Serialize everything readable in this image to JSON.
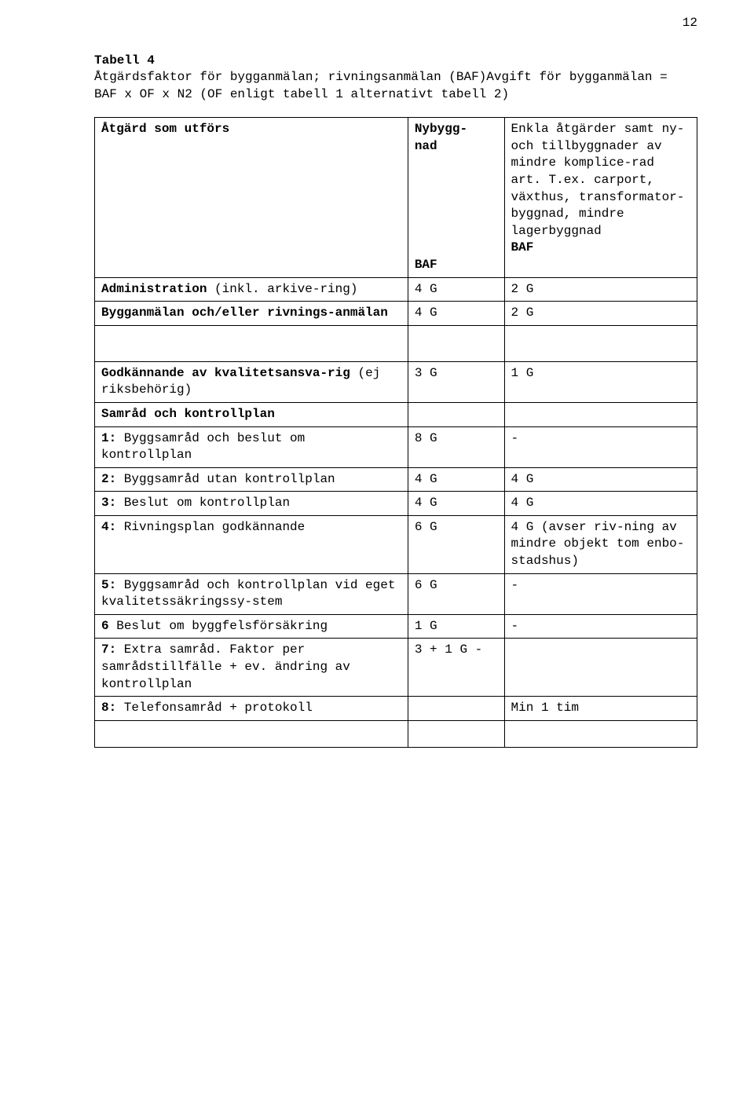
{
  "page": {
    "number": "12",
    "heading": "Tabell 4",
    "intro": "Åtgärdsfaktor för bygganmälan; rivningsanmälan (BAF)Avgift för bygganmälan = BAF x OF x N2 (OF enligt tabell 1 alternativt tabell 2)"
  },
  "colors": {
    "background": "#ffffff",
    "text": "#000000",
    "border": "#000000"
  },
  "font": {
    "family": "Courier New",
    "size_pt": 12,
    "heading_weight": "bold"
  },
  "table": {
    "col_widths_pct": [
      52,
      16,
      32
    ],
    "header": {
      "c1_bold": "Åtgärd som utförs",
      "c2_line1_bold": "Nybygg-\nnad",
      "c2_line2_bold": "BAF",
      "c3_plain": "Enkla åtgärder samt ny- och tillbyggnader av mindre komplice-rad art. T.ex. carport, växthus, transformator-byggnad, mindre lagerbyggnad",
      "c3_bold_last": "BAF"
    },
    "rows_block1": [
      {
        "c1_bold": "Administration",
        "c1_plain": " (inkl. arkive-ring)",
        "c2": "4 G",
        "c3": "2 G"
      },
      {
        "c1_bold": "Bygganmälan och/eller rivnings-anmälan",
        "c1_plain": "",
        "c2": "4 G",
        "c3": "2 G"
      }
    ],
    "rows_block2_header": [
      {
        "c1_bold": "Godkännande av kvalitetsansva-rig",
        "c1_plain": " (ej riksbehörig)",
        "c2": "3 G",
        "c3": "1 G"
      },
      {
        "c1_bold": "Samråd och kontrollplan",
        "c1_plain": "",
        "c2": "",
        "c3": ""
      }
    ],
    "rows_block2": [
      {
        "c1_bold_prefix": "1:",
        "c1_rest": " Byggsamråd och beslut om kontrollplan",
        "c2": "8 G",
        "c3": "-"
      },
      {
        "c1_bold_prefix": "2:",
        "c1_rest": " Byggsamråd utan kontrollplan",
        "c2": "4 G",
        "c3": "4 G"
      },
      {
        "c1_bold_prefix": "3:",
        "c1_rest": " Beslut om kontrollplan",
        "c2": "4 G",
        "c3": "4 G"
      },
      {
        "c1_bold_prefix": "4:",
        "c1_rest": " Rivningsplan godkännande",
        "c2": "6 G",
        "c3": "4 G (avser riv-ning av mindre objekt tom enbo-stadshus)"
      },
      {
        "c1_bold_prefix": "5:",
        "c1_rest": " Byggsamråd och kontrollplan vid eget kvalitetssäkringssy-stem",
        "c2": "6 G",
        "c3": "-"
      },
      {
        "c1_bold_prefix": "6",
        "c1_rest": "  Beslut om byggfelsförsäkring",
        "c2": "1 G",
        "c3": "-"
      },
      {
        "c1_bold_prefix": "7:",
        "c1_rest": " Extra samråd. Faktor per samrådstillfälle + ev. ändring av kontrollplan",
        "c2": "3 + 1 G -",
        "c3": ""
      },
      {
        "c1_bold_prefix": "8:",
        "c1_rest": " Telefonsamråd + protokoll",
        "c2": "",
        "c3": "Min 1 tim"
      }
    ]
  }
}
